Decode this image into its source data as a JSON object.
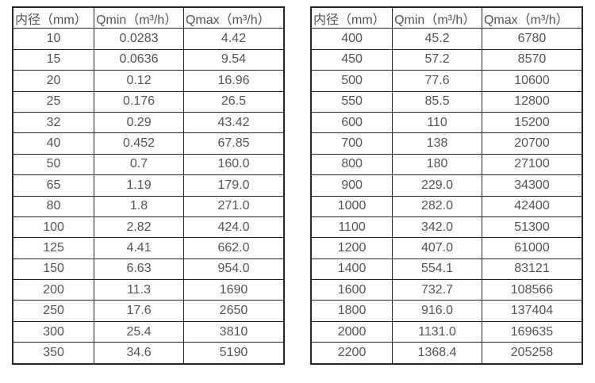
{
  "table_headers": [
    "内径（mm）",
    "Qmin（m³/h）",
    "Qmax（m³/h）"
  ],
  "tables": [
    {
      "name": "diameter-flow-table-left",
      "rows": [
        [
          "10",
          "0.0283",
          "4.42"
        ],
        [
          "15",
          "0.0636",
          "9.54"
        ],
        [
          "20",
          "0.12",
          "16.96"
        ],
        [
          "25",
          "0.176",
          "26.5"
        ],
        [
          "32",
          "0.29",
          "43.42"
        ],
        [
          "40",
          "0.452",
          "67.85"
        ],
        [
          "50",
          "0.7",
          "160.0"
        ],
        [
          "65",
          "1.19",
          "179.0"
        ],
        [
          "80",
          "1.8",
          "271.0"
        ],
        [
          "100",
          "2.82",
          "424.0"
        ],
        [
          "125",
          "4.41",
          "662.0"
        ],
        [
          "150",
          "6.63",
          "954.0"
        ],
        [
          "200",
          "11.3",
          "1690"
        ],
        [
          "250",
          "17.6",
          "2650"
        ],
        [
          "300",
          "25.4",
          "3810"
        ],
        [
          "350",
          "34.6",
          "5190"
        ]
      ]
    },
    {
      "name": "diameter-flow-table-right",
      "rows": [
        [
          "400",
          "45.2",
          "6780"
        ],
        [
          "450",
          "57.2",
          "8570"
        ],
        [
          "500",
          "77.6",
          "10600"
        ],
        [
          "550",
          "85.5",
          "12800"
        ],
        [
          "600",
          "110",
          "15200"
        ],
        [
          "700",
          "138",
          "20700"
        ],
        [
          "800",
          "180",
          "27100"
        ],
        [
          "900",
          "229.0",
          "34300"
        ],
        [
          "1000",
          "282.0",
          "42400"
        ],
        [
          "1100",
          "342.0",
          "51300"
        ],
        [
          "1200",
          "407.0",
          "61000"
        ],
        [
          "1400",
          "554.1",
          "83121"
        ],
        [
          "1600",
          "732.7",
          "108566"
        ],
        [
          "1800",
          "916.0",
          "137404"
        ],
        [
          "2000",
          "1131.0",
          "169635"
        ],
        [
          "2200",
          "1368.4",
          "205258"
        ]
      ]
    }
  ],
  "colors": {
    "border": "#262626",
    "text": "#555558",
    "background": "#ffffff"
  }
}
